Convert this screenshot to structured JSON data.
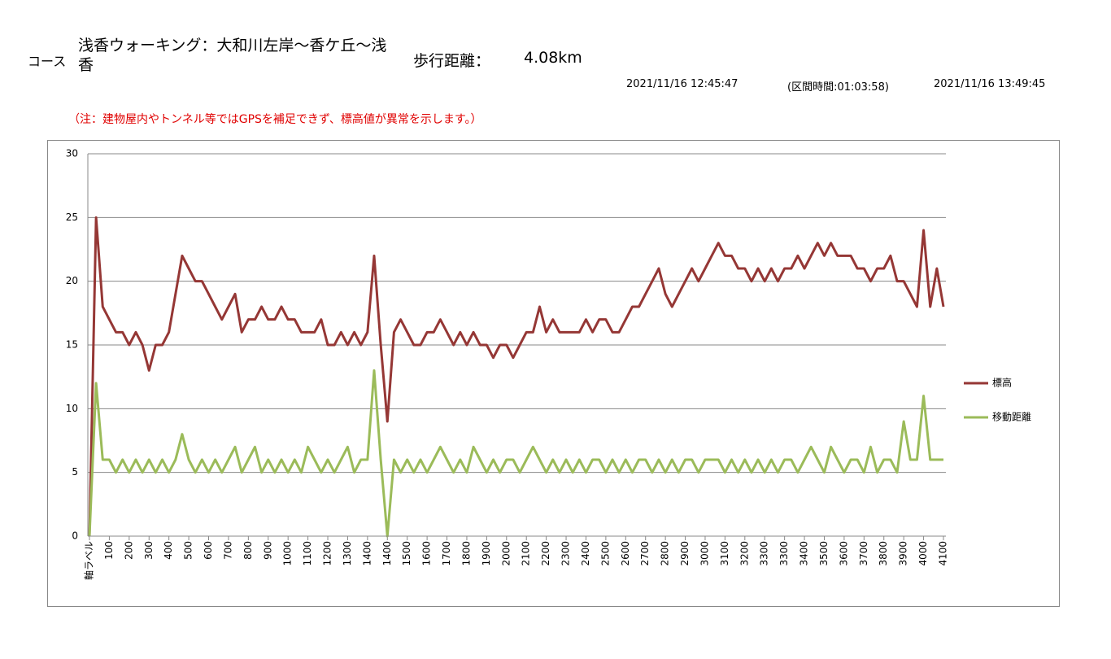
{
  "header": {
    "course_label": "コース",
    "course_name": "浅香ウォーキング：大和川左岸～香ケ丘～浅香",
    "distance_label": "歩行距離：",
    "distance": "4.08km",
    "start": "2021/11/16 12:45:47",
    "interval": "(区間時間:01:03:58)",
    "end": "2021/11/16 13:49:45",
    "note": "（注：建物屋内やトンネル等ではGPSを補足できず、標高値が異常を示します。）"
  },
  "chart_data": {
    "type": "line",
    "grid": true,
    "legend": "right",
    "ylim": [
      0,
      30
    ],
    "yticks": [
      0,
      5,
      10,
      15,
      20,
      25,
      30
    ],
    "categories": [
      "軸ラベル",
      null,
      null,
      "100",
      null,
      null,
      "200",
      null,
      null,
      "300",
      null,
      null,
      "400",
      null,
      null,
      "500",
      null,
      null,
      "600",
      null,
      null,
      "700",
      null,
      null,
      "800",
      null,
      null,
      "900",
      null,
      null,
      "1000",
      null,
      null,
      "1100",
      null,
      null,
      "1200",
      null,
      null,
      "1300",
      null,
      null,
      "1400",
      null,
      null,
      "1400",
      null,
      null,
      "1500",
      null,
      null,
      "1600",
      null,
      null,
      "1700",
      null,
      null,
      "1800",
      null,
      null,
      "1900",
      null,
      null,
      "2000",
      null,
      null,
      "2100",
      null,
      null,
      "2200",
      null,
      null,
      "2300",
      null,
      null,
      "2400",
      null,
      null,
      "2500",
      null,
      null,
      "2600",
      null,
      null,
      "2700",
      null,
      null,
      "2800",
      null,
      null,
      "2900",
      null,
      null,
      "3000",
      null,
      null,
      "3100",
      null,
      null,
      "3200",
      null,
      null,
      "3300",
      null,
      null,
      "3300",
      null,
      null,
      "3400",
      null,
      null,
      "3500",
      null,
      null,
      "3600",
      null,
      null,
      "3700",
      null,
      null,
      "3800",
      null,
      null,
      "3900",
      null,
      null,
      "4000",
      null,
      null,
      "4100"
    ],
    "series": [
      {
        "name": "標高",
        "color": "#953735",
        "values": [
          0,
          25,
          18,
          17,
          16,
          16,
          15,
          16,
          15,
          13,
          15,
          15,
          16,
          19,
          22,
          21,
          20,
          20,
          19,
          18,
          17,
          18,
          19,
          16,
          17,
          17,
          18,
          17,
          17,
          18,
          17,
          17,
          16,
          16,
          16,
          17,
          15,
          15,
          16,
          15,
          16,
          15,
          16,
          22,
          15,
          9,
          16,
          17,
          16,
          15,
          15,
          16,
          16,
          17,
          16,
          15,
          16,
          15,
          16,
          15,
          15,
          14,
          15,
          15,
          14,
          15,
          16,
          16,
          18,
          16,
          17,
          16,
          16,
          16,
          16,
          17,
          16,
          17,
          17,
          16,
          16,
          17,
          18,
          18,
          19,
          20,
          21,
          19,
          18,
          19,
          20,
          21,
          20,
          21,
          22,
          23,
          22,
          22,
          21,
          21,
          20,
          21,
          20,
          21,
          20,
          21,
          21,
          22,
          21,
          22,
          23,
          22,
          23,
          22,
          22,
          22,
          21,
          21,
          20,
          21,
          21,
          22,
          20,
          20,
          19,
          18,
          24,
          18,
          21,
          18
        ]
      },
      {
        "name": "移動距離",
        "color": "#9bbb59",
        "values": [
          0,
          12,
          6,
          6,
          5,
          6,
          5,
          6,
          5,
          6,
          5,
          6,
          5,
          6,
          8,
          6,
          5,
          6,
          5,
          6,
          5,
          6,
          7,
          5,
          6,
          7,
          5,
          6,
          5,
          6,
          5,
          6,
          5,
          7,
          6,
          5,
          6,
          5,
          6,
          7,
          5,
          6,
          6,
          13,
          6,
          0,
          6,
          5,
          6,
          5,
          6,
          5,
          6,
          7,
          6,
          5,
          6,
          5,
          7,
          6,
          5,
          6,
          5,
          6,
          6,
          5,
          6,
          7,
          6,
          5,
          6,
          5,
          6,
          5,
          6,
          5,
          6,
          6,
          5,
          6,
          5,
          6,
          5,
          6,
          6,
          5,
          6,
          5,
          6,
          5,
          6,
          6,
          5,
          6,
          6,
          6,
          5,
          6,
          5,
          6,
          5,
          6,
          5,
          6,
          5,
          6,
          6,
          5,
          6,
          7,
          6,
          5,
          7,
          6,
          5,
          6,
          6,
          5,
          7,
          5,
          6,
          6,
          5,
          9,
          6,
          6,
          11,
          6,
          6,
          6
        ]
      }
    ]
  }
}
